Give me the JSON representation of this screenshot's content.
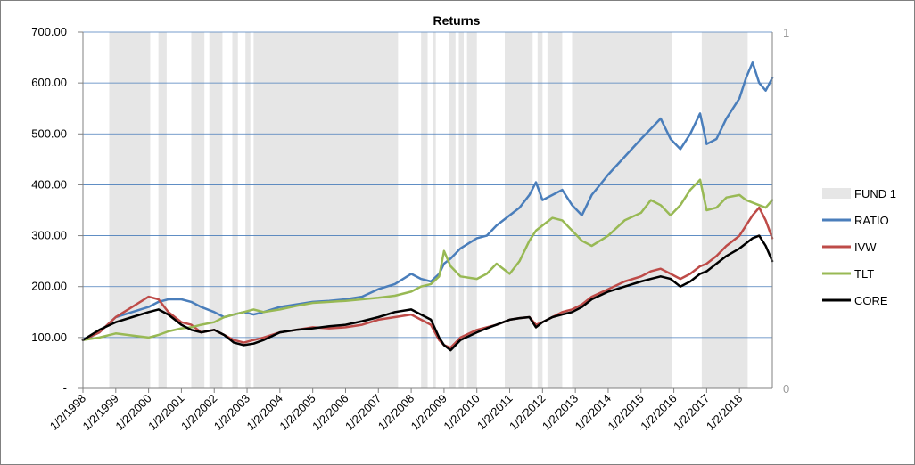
{
  "chart_data": {
    "type": "line",
    "title": "Returns",
    "y_ticks": [
      "-",
      "100.00",
      "200.00",
      "300.00",
      "400.00",
      "500.00",
      "600.00",
      "700.00"
    ],
    "ylim": [
      0,
      700
    ],
    "y2_ticks": [
      "0",
      "1"
    ],
    "y2lim": [
      0,
      1
    ],
    "x_ticks": [
      "1/2/1998",
      "1/2/1999",
      "1/2/2000",
      "1/2/2001",
      "1/2/2002",
      "1/2/2003",
      "1/2/2004",
      "1/2/2005",
      "1/2/2006",
      "1/2/2007",
      "1/2/2008",
      "1/2/2009",
      "1/2/2010",
      "1/2/2011",
      "1/2/2012",
      "1/2/2013",
      "1/2/2014",
      "1/2/2015",
      "1/2/2016",
      "1/2/2017",
      "1/2/2018"
    ],
    "xlim": [
      1998.0,
      2019.0
    ],
    "grid": true,
    "legend_position": "right",
    "shaded_series": {
      "name": "FUND 1",
      "color": "#e6e6e6",
      "axis": "secondary",
      "value": 1,
      "periods": [
        [
          1998.8,
          2000.05
        ],
        [
          2000.3,
          2000.55
        ],
        [
          2001.3,
          2001.7
        ],
        [
          2001.85,
          2002.25
        ],
        [
          2002.55,
          2002.72
        ],
        [
          2002.95,
          2003.1
        ],
        [
          2003.2,
          2007.6
        ],
        [
          2008.3,
          2008.5
        ],
        [
          2008.65,
          2008.75
        ],
        [
          2009.15,
          2009.35
        ],
        [
          2009.45,
          2009.6
        ],
        [
          2009.7,
          2010.0
        ],
        [
          2010.85,
          2011.7
        ],
        [
          2011.85,
          2012.0
        ],
        [
          2012.15,
          2012.6
        ],
        [
          2012.9,
          2015.95
        ],
        [
          2016.85,
          2018.25
        ]
      ]
    },
    "series": [
      {
        "name": "RATIO",
        "color": "#4a7ebb",
        "x": [
          1998.0,
          1998.5,
          1999.0,
          1999.5,
          2000.0,
          2000.3,
          2000.6,
          2001.0,
          2001.3,
          2001.6,
          2002.0,
          2002.3,
          2002.6,
          2002.9,
          2003.2,
          2003.5,
          2004.0,
          2004.5,
          2005.0,
          2005.5,
          2006.0,
          2006.5,
          2007.0,
          2007.5,
          2008.0,
          2008.3,
          2008.6,
          2008.85,
          2009.0,
          2009.2,
          2009.5,
          2010.0,
          2010.3,
          2010.6,
          2011.0,
          2011.3,
          2011.6,
          2011.8,
          2012.0,
          2012.3,
          2012.6,
          2012.9,
          2013.2,
          2013.5,
          2014.0,
          2014.5,
          2015.0,
          2015.3,
          2015.6,
          2015.9,
          2016.2,
          2016.5,
          2016.8,
          2017.0,
          2017.3,
          2017.6,
          2018.0,
          2018.2,
          2018.4,
          2018.6,
          2018.8,
          2019.0
        ],
        "values": [
          95,
          110,
          140,
          150,
          160,
          170,
          175,
          175,
          170,
          160,
          150,
          140,
          145,
          150,
          145,
          150,
          160,
          165,
          170,
          172,
          175,
          180,
          195,
          205,
          225,
          215,
          210,
          225,
          245,
          255,
          275,
          295,
          300,
          320,
          340,
          355,
          380,
          405,
          370,
          380,
          390,
          360,
          340,
          380,
          420,
          455,
          490,
          510,
          530,
          490,
          470,
          500,
          540,
          480,
          490,
          530,
          570,
          610,
          640,
          600,
          585,
          610
        ]
      },
      {
        "name": "IVW",
        "color": "#be4b48",
        "x": [
          1998.0,
          1998.5,
          1999.0,
          1999.5,
          2000.0,
          2000.3,
          2000.6,
          2001.0,
          2001.3,
          2001.6,
          2002.0,
          2002.3,
          2002.6,
          2002.9,
          2003.2,
          2003.5,
          2004.0,
          2004.5,
          2005.0,
          2005.5,
          2006.0,
          2006.5,
          2007.0,
          2007.5,
          2008.0,
          2008.3,
          2008.6,
          2008.85,
          2009.0,
          2009.2,
          2009.5,
          2010.0,
          2010.3,
          2010.6,
          2011.0,
          2011.3,
          2011.6,
          2011.8,
          2012.0,
          2012.3,
          2012.6,
          2012.9,
          2013.2,
          2013.5,
          2014.0,
          2014.5,
          2015.0,
          2015.3,
          2015.6,
          2015.9,
          2016.2,
          2016.5,
          2016.8,
          2017.0,
          2017.3,
          2017.6,
          2018.0,
          2018.2,
          2018.4,
          2018.6,
          2018.8,
          2019.0
        ],
        "values": [
          95,
          110,
          140,
          160,
          180,
          175,
          150,
          130,
          125,
          110,
          115,
          105,
          95,
          90,
          95,
          100,
          110,
          115,
          120,
          118,
          120,
          125,
          135,
          140,
          145,
          135,
          125,
          95,
          85,
          80,
          100,
          115,
          120,
          125,
          135,
          138,
          140,
          125,
          130,
          140,
          150,
          155,
          165,
          180,
          195,
          210,
          220,
          230,
          235,
          225,
          215,
          225,
          240,
          245,
          260,
          280,
          300,
          320,
          340,
          355,
          330,
          295
        ]
      },
      {
        "name": "TLT",
        "color": "#98b954",
        "x": [
          1998.0,
          1998.5,
          1999.0,
          1999.5,
          2000.0,
          2000.3,
          2000.6,
          2001.0,
          2001.3,
          2001.6,
          2002.0,
          2002.3,
          2002.6,
          2002.9,
          2003.2,
          2003.5,
          2004.0,
          2004.5,
          2005.0,
          2005.5,
          2006.0,
          2006.5,
          2007.0,
          2007.5,
          2008.0,
          2008.3,
          2008.6,
          2008.85,
          2009.0,
          2009.2,
          2009.5,
          2010.0,
          2010.3,
          2010.6,
          2011.0,
          2011.3,
          2011.6,
          2011.8,
          2012.0,
          2012.3,
          2012.6,
          2012.9,
          2013.2,
          2013.5,
          2014.0,
          2014.5,
          2015.0,
          2015.3,
          2015.6,
          2015.9,
          2016.2,
          2016.5,
          2016.8,
          2017.0,
          2017.3,
          2017.6,
          2018.0,
          2018.2,
          2018.4,
          2018.6,
          2018.8,
          2019.0
        ],
        "values": [
          95,
          100,
          108,
          104,
          100,
          105,
          112,
          118,
          120,
          125,
          130,
          140,
          145,
          150,
          155,
          150,
          155,
          162,
          168,
          170,
          172,
          175,
          178,
          182,
          190,
          200,
          205,
          220,
          270,
          240,
          220,
          215,
          225,
          245,
          225,
          250,
          290,
          310,
          320,
          335,
          330,
          310,
          290,
          280,
          300,
          330,
          345,
          370,
          360,
          340,
          360,
          390,
          410,
          350,
          355,
          375,
          380,
          370,
          365,
          360,
          355,
          370
        ]
      },
      {
        "name": "CORE",
        "color": "#000000",
        "x": [
          1998.0,
          1998.5,
          1999.0,
          1999.5,
          2000.0,
          2000.3,
          2000.6,
          2001.0,
          2001.3,
          2001.6,
          2002.0,
          2002.3,
          2002.6,
          2002.9,
          2003.2,
          2003.5,
          2004.0,
          2004.5,
          2005.0,
          2005.5,
          2006.0,
          2006.5,
          2007.0,
          2007.5,
          2008.0,
          2008.3,
          2008.6,
          2008.85,
          2009.0,
          2009.2,
          2009.5,
          2010.0,
          2010.3,
          2010.6,
          2011.0,
          2011.3,
          2011.6,
          2011.8,
          2012.0,
          2012.3,
          2012.6,
          2012.9,
          2013.2,
          2013.5,
          2014.0,
          2014.5,
          2015.0,
          2015.3,
          2015.6,
          2015.9,
          2016.2,
          2016.5,
          2016.8,
          2017.0,
          2017.3,
          2017.6,
          2018.0,
          2018.2,
          2018.4,
          2018.6,
          2018.8,
          2019.0
        ],
        "values": [
          95,
          115,
          130,
          140,
          150,
          155,
          145,
          125,
          115,
          110,
          115,
          105,
          90,
          85,
          88,
          95,
          110,
          115,
          118,
          122,
          125,
          132,
          140,
          150,
          155,
          145,
          135,
          100,
          85,
          75,
          95,
          110,
          118,
          125,
          135,
          138,
          140,
          120,
          130,
          140,
          145,
          150,
          160,
          175,
          190,
          200,
          210,
          215,
          220,
          215,
          200,
          210,
          225,
          230,
          245,
          260,
          275,
          285,
          295,
          300,
          280,
          250
        ]
      }
    ]
  }
}
